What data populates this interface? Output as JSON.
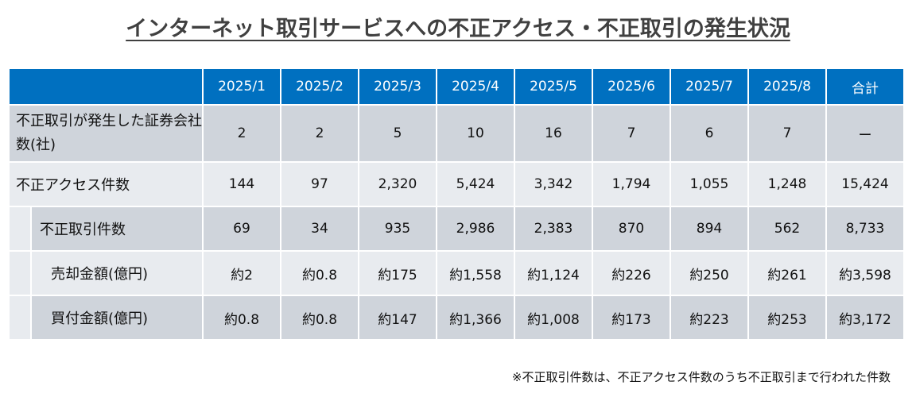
{
  "title": "インターネット取引サービスへの不正アクセス・不正取引の発生状況",
  "columns": [
    "2025/1",
    "2025/2",
    "2025/3",
    "2025/4",
    "2025/5",
    "2025/6",
    "2025/7",
    "2025/8",
    "合計"
  ],
  "rows": [
    {
      "label": "不正取引が発生した証券会社数(社)",
      "values": [
        "2",
        "2",
        "5",
        "10",
        "16",
        "7",
        "6",
        "7",
        "ー"
      ]
    },
    {
      "label": "不正アクセス件数",
      "values": [
        "144",
        "97",
        "2,320",
        "5,424",
        "3,342",
        "1,794",
        "1,055",
        "1,248",
        "15,424"
      ]
    },
    {
      "label": "不正取引件数",
      "values": [
        "69",
        "34",
        "935",
        "2,986",
        "2,383",
        "870",
        "894",
        "562",
        "8,733"
      ]
    },
    {
      "label": "売却金額(億円)",
      "values": [
        "約2",
        "約0.8",
        "約175",
        "約1,558",
        "約1,124",
        "約226",
        "約250",
        "約261",
        "約3,598"
      ]
    },
    {
      "label": "買付金額(億円)",
      "values": [
        "約0.8",
        "約0.8",
        "約147",
        "約1,366",
        "約1,008",
        "約173",
        "約223",
        "約253",
        "約3,172"
      ]
    }
  ],
  "footnote": "※不正取引件数は、不正アクセス件数のうち不正取引まで行われた件数"
}
